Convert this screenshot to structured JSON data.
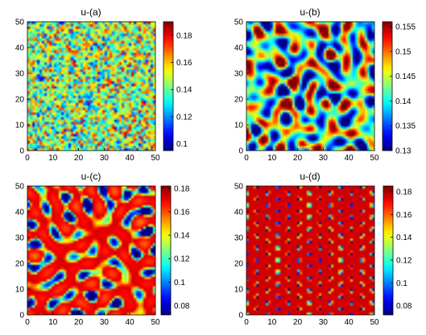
{
  "chart_data": [
    {
      "type": "heatmap",
      "title": "u-(a)",
      "pattern": "noise",
      "xlim": [
        0,
        50
      ],
      "ylim": [
        0,
        50
      ],
      "xticks": [
        0,
        10,
        20,
        30,
        40,
        50
      ],
      "yticks": [
        0,
        10,
        20,
        30,
        40,
        50
      ],
      "colorbar": {
        "range": [
          0.095,
          0.19
        ],
        "ticks": [
          "0.18",
          "0.16",
          "0.14",
          "0.12",
          "0.1"
        ],
        "tick_values": [
          0.18,
          0.16,
          0.14,
          0.12,
          0.1
        ]
      }
    },
    {
      "type": "heatmap",
      "title": "u-(b)",
      "pattern": "smooth-random",
      "xlim": [
        0,
        50
      ],
      "ylim": [
        0,
        50
      ],
      "xticks": [
        0,
        10,
        20,
        30,
        40,
        50
      ],
      "yticks": [
        0,
        10,
        20,
        30,
        40,
        50
      ],
      "colorbar": {
        "range": [
          0.13,
          0.156
        ],
        "ticks": [
          "0.155",
          "0.15",
          "0.145",
          "0.14",
          "0.135",
          "0.13"
        ],
        "tick_values": [
          0.155,
          0.15,
          0.145,
          0.14,
          0.135,
          0.13
        ]
      }
    },
    {
      "type": "heatmap",
      "title": "u-(c)",
      "pattern": "mixed-spots-stripes",
      "xlim": [
        0,
        50
      ],
      "ylim": [
        0,
        50
      ],
      "xticks": [
        0,
        10,
        20,
        30,
        40,
        50
      ],
      "yticks": [
        0,
        10,
        20,
        30,
        40,
        50
      ],
      "colorbar": {
        "range": [
          0.072,
          0.182
        ],
        "ticks": [
          "0.18",
          "0.16",
          "0.14",
          "0.12",
          "0.1",
          "0.08"
        ],
        "tick_values": [
          0.18,
          0.16,
          0.14,
          0.12,
          0.1,
          0.08
        ]
      }
    },
    {
      "type": "heatmap",
      "title": "u-(d)",
      "pattern": "hexagonal-spots",
      "xlim": [
        0,
        50
      ],
      "ylim": [
        0,
        50
      ],
      "xticks": [
        0,
        10,
        20,
        30,
        40,
        50
      ],
      "yticks": [
        0,
        10,
        20,
        30,
        40,
        50
      ],
      "colorbar": {
        "range": [
          0.072,
          0.185
        ],
        "ticks": [
          "0.18",
          "0.16",
          "0.14",
          "0.12",
          "0.1",
          "0.08"
        ],
        "tick_values": [
          0.18,
          0.16,
          0.14,
          0.12,
          0.1,
          0.08
        ]
      }
    }
  ],
  "colormap": "jet"
}
